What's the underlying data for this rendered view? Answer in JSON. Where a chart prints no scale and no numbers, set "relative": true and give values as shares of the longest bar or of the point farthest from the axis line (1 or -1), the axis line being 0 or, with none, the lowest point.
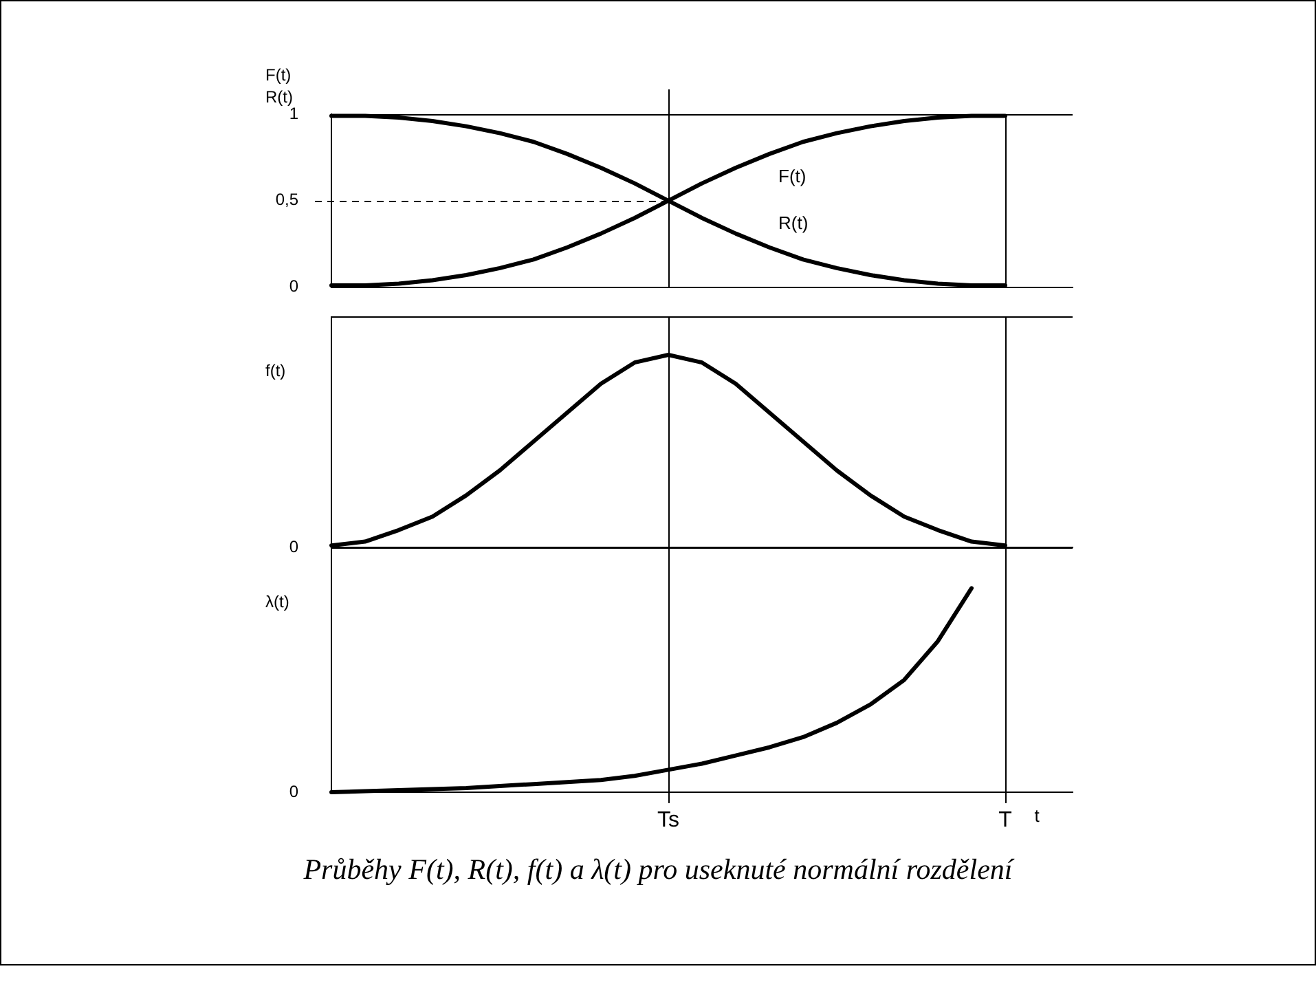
{
  "chart_data": [
    {
      "type": "line",
      "ylabel": "F(t) R(t)",
      "categories": [
        null,
        null,
        null,
        null,
        null,
        null,
        null,
        null,
        null,
        null,
        null,
        null,
        null,
        null,
        null,
        null,
        null,
        null,
        null,
        null,
        null,
        null,
        null
      ],
      "ylim": [
        0,
        1
      ],
      "yticks": [
        0,
        {
          "value": 0.5,
          "label": "0,5"
        },
        1
      ],
      "tick_labels": "y",
      "marker": "none",
      "series": [
        {
          "name": "F(t)",
          "color": "#000000",
          "values": [
            0.01,
            0.01,
            0.02,
            0.04,
            0.07,
            0.11,
            0.16,
            0.23,
            0.31,
            0.4,
            0.5,
            0.6,
            0.69,
            0.77,
            0.84,
            0.89,
            0.93,
            0.96,
            0.98,
            0.99,
            0.99,
            null,
            null
          ]
        },
        {
          "name": "R(t)",
          "color": "#000000",
          "values": [
            0.99,
            0.99,
            0.98,
            0.96,
            0.93,
            0.89,
            0.84,
            0.77,
            0.69,
            0.6,
            0.5,
            0.4,
            0.31,
            0.23,
            0.16,
            0.11,
            0.07,
            0.04,
            0.02,
            0.01,
            0.01,
            null,
            null
          ]
        }
      ],
      "ref_lines": [
        {
          "axis": "y",
          "value": 0.5,
          "line_style": "dashed"
        }
      ]
    },
    {
      "type": "line",
      "ylabel": "f(t)",
      "relative": true,
      "categories": [
        null,
        null,
        null,
        null,
        null,
        null,
        null,
        null,
        null,
        null,
        null,
        null,
        null,
        null,
        null,
        null,
        null,
        null,
        null,
        null,
        null,
        null,
        null
      ],
      "tick_labels": false,
      "marker": "none",
      "series": [
        {
          "color": "#000000",
          "values": [
            0.01,
            0.03,
            0.09,
            0.16,
            0.27,
            0.4,
            0.55,
            0.7,
            0.85,
            0.96,
            1,
            0.96,
            0.85,
            0.7,
            0.55,
            0.4,
            0.27,
            0.16,
            0.09,
            0.03,
            0.01,
            null,
            null
          ]
        }
      ],
      "annotations": [
        "0"
      ]
    },
    {
      "type": "line",
      "ylabel": "λ(t)",
      "xlabel": "t",
      "relative": true,
      "categories": [
        null,
        null,
        null,
        null,
        null,
        null,
        null,
        null,
        null,
        null,
        "Ts",
        null,
        null,
        null,
        null,
        null,
        null,
        null,
        null,
        null,
        "T",
        null,
        null
      ],
      "tick_labels": "x",
      "marker": "none",
      "series": [
        {
          "color": "#000000",
          "values": [
            0,
            0.005,
            0.01,
            0.015,
            0.02,
            0.03,
            0.04,
            0.05,
            0.06,
            0.08,
            0.11,
            0.14,
            0.18,
            0.22,
            0.27,
            0.34,
            0.43,
            0.55,
            0.74,
            1,
            null,
            null,
            null
          ]
        }
      ],
      "ref_lines": [
        {
          "axis": "x",
          "value": "Ts"
        },
        {
          "axis": "x",
          "value": "T"
        }
      ],
      "annotations": [
        "0",
        "Průběhy F(t), R(t), f(t) a λ(t) pro useknuté normální rozdělení"
      ]
    }
  ]
}
